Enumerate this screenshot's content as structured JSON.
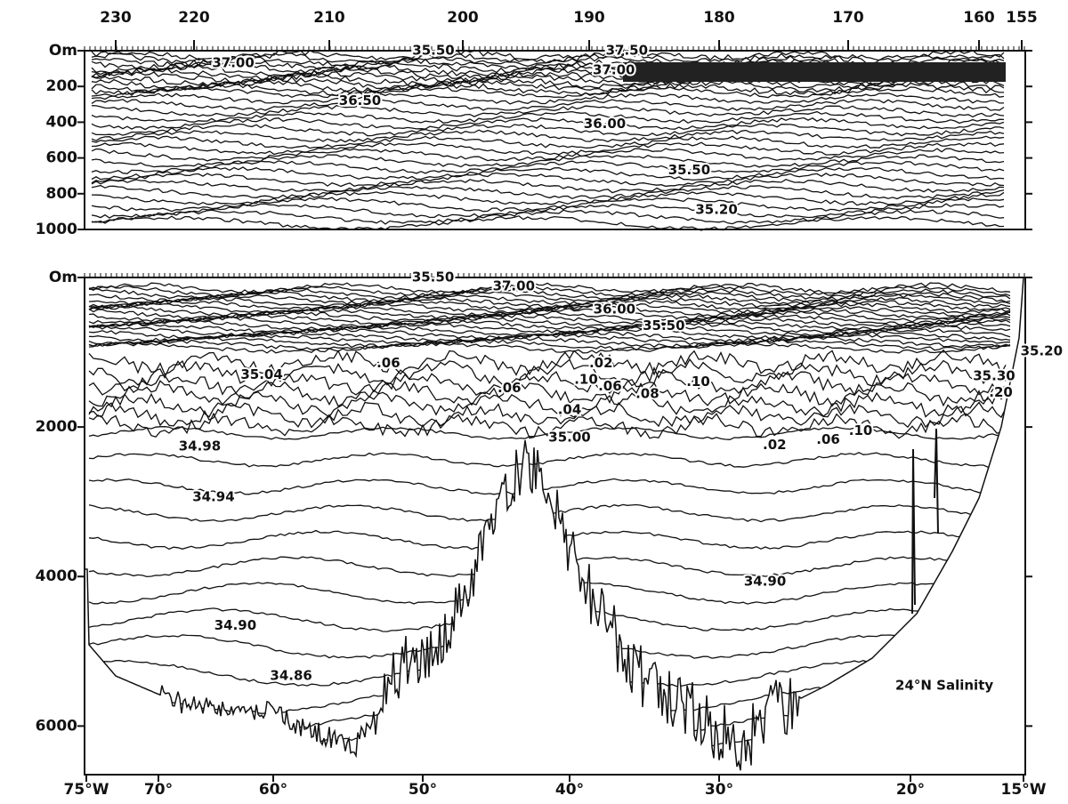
{
  "chart_data": [
    {
      "type": "contour",
      "xticks": [
        230,
        220,
        210,
        200,
        190,
        180,
        170,
        160,
        155
      ],
      "ylim": [
        0,
        1000
      ],
      "yticks": [
        {
          "value": 0,
          "label": "Om"
        },
        200,
        400,
        600,
        800,
        1000
      ],
      "annotations": [
        {
          "text": "35.50",
          "x": 202.2,
          "y": 0
        },
        {
          "text": "37.50",
          "x": 187.1,
          "y": 0
        },
        {
          "text": "37.00",
          "x": 217.1,
          "y": 70
        },
        {
          "text": "37.00",
          "x": 188.1,
          "y": 110
        },
        {
          "text": "36.50",
          "x": 207.7,
          "y": 280
        },
        {
          "text": "36.00",
          "x": 188.8,
          "y": 410
        },
        {
          "text": "35.50",
          "x": 182.3,
          "y": 670
        },
        {
          "text": "35.20",
          "x": 180.2,
          "y": 890
        }
      ]
    },
    {
      "type": "contour",
      "xticks": [
        {
          "value": -75,
          "label": "75°W"
        },
        {
          "value": -70,
          "label": "70°"
        },
        {
          "value": -60,
          "label": "60°"
        },
        {
          "value": -50,
          "label": "50°"
        },
        {
          "value": -40,
          "label": "40°"
        },
        {
          "value": -30,
          "label": "30°"
        },
        {
          "value": -20,
          "label": "20°"
        },
        {
          "value": -15,
          "label": "15°W"
        }
      ],
      "ylim": [
        0,
        6650
      ],
      "yticks": [
        {
          "value": 0,
          "label": "Om"
        },
        2000,
        4000,
        6000
      ],
      "annotations": [
        {
          "text": "35.50",
          "x": -49.3,
          "y": 0
        },
        {
          "text": "37.00",
          "x": -43.8,
          "y": 120
        },
        {
          "text": "36.00",
          "x": -37.0,
          "y": 430
        },
        {
          "text": "35.50",
          "x": -33.7,
          "y": 650
        },
        {
          "text": "35.20",
          "x": -14.2,
          "y": 990
        },
        {
          "text": "35.04",
          "x": -61.0,
          "y": 1300
        },
        {
          "text": ".06",
          "x": -52.3,
          "y": 1150
        },
        {
          "text": ".06",
          "x": -44.1,
          "y": 1480
        },
        {
          "text": ".10",
          "x": -38.9,
          "y": 1370
        },
        {
          "text": ".02",
          "x": -37.9,
          "y": 1150
        },
        {
          "text": ".06",
          "x": -37.3,
          "y": 1460
        },
        {
          "text": ".04",
          "x": -40.0,
          "y": 1770
        },
        {
          "text": ".08",
          "x": -34.8,
          "y": 1560
        },
        {
          "text": ".10",
          "x": -31.4,
          "y": 1400
        },
        {
          "text": "35.30",
          "x": -16.3,
          "y": 1320
        },
        {
          "text": ".20",
          "x": -16.0,
          "y": 1540
        },
        {
          "text": ".10",
          "x": -22.6,
          "y": 2050
        },
        {
          "text": ".06",
          "x": -24.3,
          "y": 2170
        },
        {
          "text": ".02",
          "x": -27.1,
          "y": 2240
        },
        {
          "text": "35.00",
          "x": -40.0,
          "y": 2140
        },
        {
          "text": "34.98",
          "x": -66.4,
          "y": 2260
        },
        {
          "text": "34.94",
          "x": -65.2,
          "y": 2940
        },
        {
          "text": "34.90",
          "x": -27.6,
          "y": 4070
        },
        {
          "text": "34.90",
          "x": -63.3,
          "y": 4660
        },
        {
          "text": "34.86",
          "x": -58.8,
          "y": 5330
        },
        {
          "text": "24°N Salinity",
          "x": -18.5,
          "y": 5460
        }
      ]
    }
  ]
}
